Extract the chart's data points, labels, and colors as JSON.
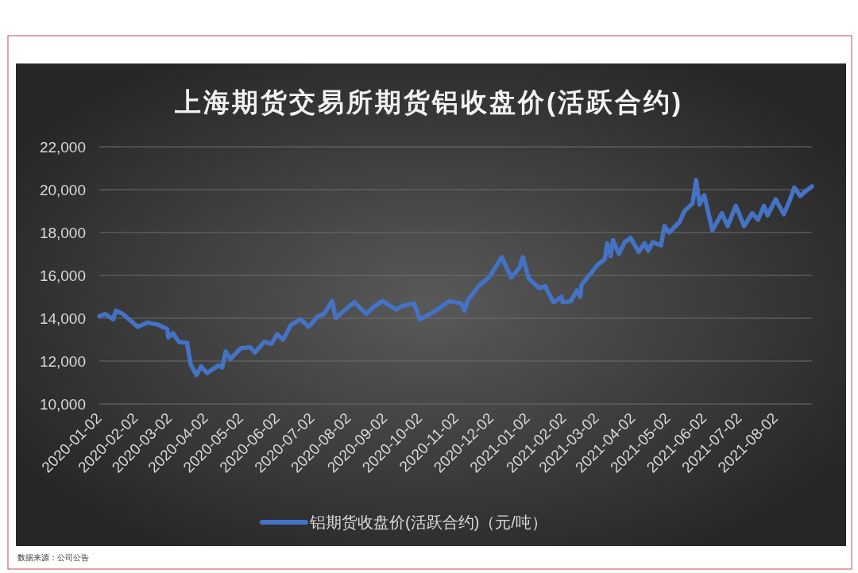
{
  "chart_data": {
    "type": "line",
    "title": "上海期货交易所期货铝收盘价(活跃合约)",
    "x": [
      "2020-01-02",
      "2020-01-07",
      "2020-01-14",
      "2020-01-16",
      "2020-01-22",
      "2020-02-04",
      "2020-02-12",
      "2020-02-21",
      "2020-02-29",
      "2020-03-01",
      "2020-03-05",
      "2020-03-10",
      "2020-03-17",
      "2020-03-20",
      "2020-03-25",
      "2020-03-29",
      "2020-04-03",
      "2020-04-13",
      "2020-04-16",
      "2020-04-19",
      "2020-04-23",
      "2020-05-02",
      "2020-05-10",
      "2020-05-14",
      "2020-05-22",
      "2020-05-28",
      "2020-06-02",
      "2020-06-07",
      "2020-06-14",
      "2020-06-22",
      "2020-06-29",
      "2020-07-07",
      "2020-07-12",
      "2020-07-19",
      "2020-07-22",
      "2020-07-29",
      "2020-08-07",
      "2020-08-17",
      "2020-08-24",
      "2020-08-31",
      "2020-09-12",
      "2020-09-16",
      "2020-09-27",
      "2020-10-02",
      "2020-10-14",
      "2020-10-27",
      "2020-11-06",
      "2020-11-09",
      "2020-11-12",
      "2020-11-22",
      "2020-11-30",
      "2020-12-11",
      "2020-12-19",
      "2020-12-26",
      "2020-12-29",
      "2021-01-03",
      "2021-01-12",
      "2021-01-17",
      "2021-01-24",
      "2021-01-26",
      "2021-01-31",
      "2021-02-01",
      "2021-02-08",
      "2021-02-13",
      "2021-02-16",
      "2021-02-17",
      "2021-03-03",
      "2021-03-09",
      "2021-03-11",
      "2021-03-14",
      "2021-03-16",
      "2021-03-21",
      "2021-03-26",
      "2021-03-31",
      "2021-04-07",
      "2021-04-12",
      "2021-04-15",
      "2021-04-19",
      "2021-04-26",
      "2021-04-29",
      "2021-05-03",
      "2021-05-12",
      "2021-05-16",
      "2021-05-23",
      "2021-05-26",
      "2021-05-29",
      "2021-06-02",
      "2021-06-09",
      "2021-06-17",
      "2021-06-22",
      "2021-06-29",
      "2021-07-06",
      "2021-07-13",
      "2021-07-18",
      "2021-07-23",
      "2021-07-26",
      "2021-08-02",
      "2021-08-09",
      "2021-08-14",
      "2021-08-18",
      "2021-08-23",
      "2021-08-28",
      "2021-09-02"
    ],
    "series": [
      {
        "name": "铝期货收盘价(活跃合约)（元/吨）",
        "color": "#4472c4",
        "values": [
          14100,
          14200,
          13950,
          14350,
          14200,
          13600,
          13800,
          13700,
          13500,
          13100,
          13300,
          12900,
          12850,
          11850,
          11350,
          11750,
          11450,
          11800,
          11700,
          12450,
          12100,
          12600,
          12650,
          12400,
          12900,
          12800,
          13250,
          13000,
          13700,
          13950,
          13600,
          14100,
          14200,
          14800,
          14000,
          14350,
          14750,
          14200,
          14550,
          14800,
          14400,
          14550,
          14700,
          13950,
          14300,
          14800,
          14700,
          14350,
          14850,
          15550,
          15900,
          16850,
          15900,
          16350,
          16850,
          15850,
          15400,
          15500,
          14750,
          14800,
          15000,
          14750,
          14800,
          15300,
          15000,
          15550,
          16500,
          16750,
          17500,
          16900,
          17650,
          17000,
          17550,
          17750,
          17100,
          17500,
          17150,
          17550,
          17400,
          18300,
          18000,
          18500,
          19000,
          19350,
          20450,
          19300,
          19750,
          18100,
          18900,
          18300,
          19250,
          18300,
          18900,
          18600,
          19250,
          18800,
          19550,
          18850,
          19500,
          20100,
          19700,
          19950,
          20150
        ]
      }
    ],
    "xlim": [
      "2020-01-02",
      "2021-09-02"
    ],
    "xticks": [
      "2020-01-02",
      "2020-02-02",
      "2020-03-02",
      "2020-04-02",
      "2020-05-02",
      "2020-06-02",
      "2020-07-02",
      "2020-08-02",
      "2020-09-02",
      "2020-10-02",
      "2020-11-02",
      "2020-12-02",
      "2021-01-02",
      "2021-02-02",
      "2021-03-02",
      "2021-04-02",
      "2021-05-02",
      "2021-06-02",
      "2021-07-02",
      "2021-08-02"
    ],
    "ylim": [
      10000,
      22000
    ],
    "yticks": [
      {
        "value": 10000,
        "label": "10,000"
      },
      {
        "value": 12000,
        "label": "12,000"
      },
      {
        "value": 14000,
        "label": "14,000"
      },
      {
        "value": 16000,
        "label": "16,000"
      },
      {
        "value": 18000,
        "label": "18,000"
      },
      {
        "value": 20000,
        "label": "20,000"
      },
      {
        "value": 22000,
        "label": "22,000"
      }
    ],
    "grid": "y",
    "legend": "bottom",
    "annotations": [
      "数据来源：公司公告"
    ]
  }
}
